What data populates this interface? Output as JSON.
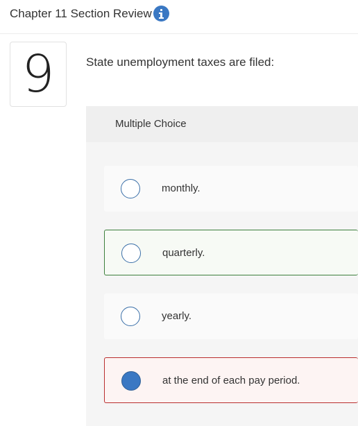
{
  "header": {
    "title": "Chapter 11 Section Review",
    "info_icon": "info-icon",
    "accent_color": "#3a78c3"
  },
  "question": {
    "number": "9",
    "text": "State unemployment taxes are filed:"
  },
  "multiple_choice": {
    "label": "Multiple Choice",
    "options": [
      {
        "label": "monthly.",
        "selected": false,
        "state": "neutral"
      },
      {
        "label": "quarterly.",
        "selected": false,
        "state": "correct"
      },
      {
        "label": "yearly.",
        "selected": false,
        "state": "neutral"
      },
      {
        "label": "at the end of each pay period.",
        "selected": true,
        "state": "incorrect"
      }
    ]
  },
  "colors": {
    "correct_border": "#3c7f3c",
    "incorrect_border": "#b92d2d",
    "radio_selected": "#3a78c3"
  }
}
